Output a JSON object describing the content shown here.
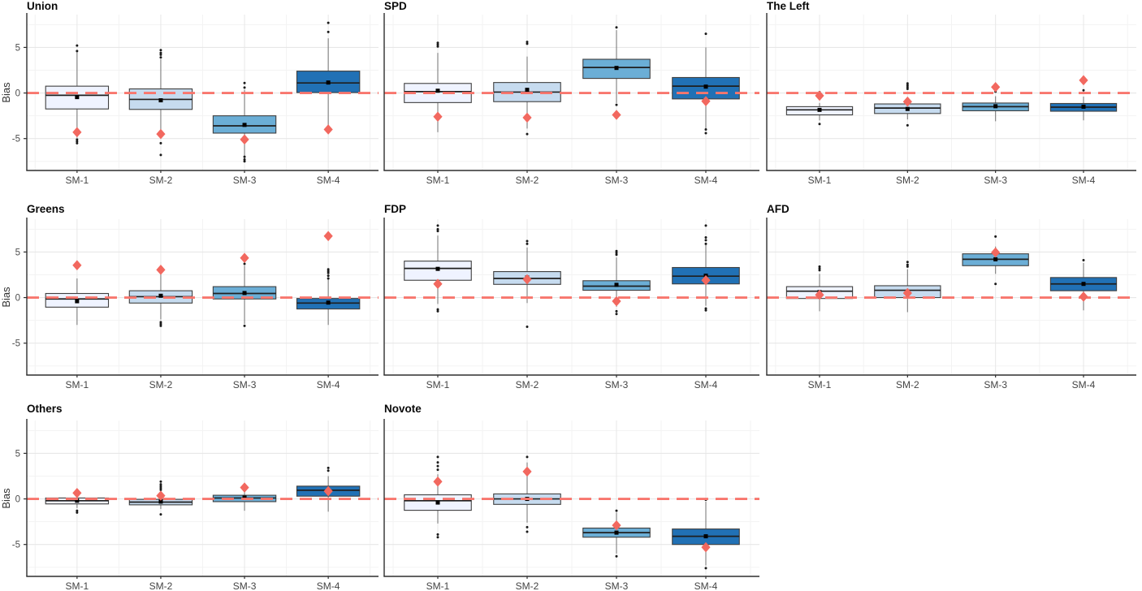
{
  "figure": {
    "ylabel": "Bias",
    "categories": [
      "SM-1",
      "SM-2",
      "SM-3",
      "SM-4"
    ],
    "y_ticks": [
      5,
      0,
      -5
    ],
    "y_tick_labels": [
      "5",
      "0",
      "-5"
    ],
    "y_minor_ticks": [
      7.5,
      2.5,
      -2.5,
      -7.5
    ],
    "ylim": [
      -8.5,
      8.6
    ],
    "reference_line_y": 0,
    "colors": {
      "box_fills": [
        "#EFF3FF",
        "#C6DBEF",
        "#6BAED6",
        "#2171B5"
      ],
      "box_stroke": "#3f3f3f",
      "whisker": "#7d7d7d",
      "median": "#1f1f1f",
      "mean_marker": "#000000",
      "outlier": "#1a1a1a",
      "reference_line": "#F8766D",
      "diamond": "#F2685F",
      "grid_major": "#E7E7E7",
      "grid_minor": "#F3F3F3",
      "axis": "#2f2f2f",
      "tick_text": "#4d4d4d"
    }
  },
  "chart_data": [
    {
      "title": "Union",
      "type": "boxplot",
      "boxes": [
        {
          "label": "SM-1",
          "q1": -1.75,
          "median": -0.25,
          "q3": 0.75,
          "mean": -0.45,
          "whisker_low": -4.9,
          "whisker_high": 4.5,
          "outliers": [
            5.2,
            4.6,
            -5.1,
            -5.3,
            -5.5
          ],
          "diamond": -4.3
        },
        {
          "label": "SM-2",
          "q1": -1.8,
          "median": -0.7,
          "q3": 0.45,
          "mean": -0.8,
          "whisker_low": -4.9,
          "whisker_high": 3.7,
          "outliers": [
            4.7,
            4.4,
            4.2,
            3.9,
            -5.5,
            -6.8
          ],
          "diamond": -4.5
        },
        {
          "label": "SM-3",
          "q1": -4.4,
          "median": -3.6,
          "q3": -2.5,
          "mean": -3.5,
          "whisker_low": -7.4,
          "whisker_high": 0.35,
          "outliers": [
            1.1,
            0.6,
            -7.0,
            -7.3,
            -7.5
          ],
          "diamond": -5.1
        },
        {
          "label": "SM-4",
          "q1": 0.05,
          "median": 1.1,
          "q3": 2.4,
          "mean": 1.15,
          "whisker_low": -4.0,
          "whisker_high": 6.0,
          "outliers": [
            7.7,
            6.7
          ],
          "diamond": -4.0
        }
      ]
    },
    {
      "title": "SPD",
      "type": "boxplot",
      "boxes": [
        {
          "label": "SM-1",
          "q1": -1.05,
          "median": 0.15,
          "q3": 1.05,
          "mean": 0.25,
          "whisker_low": -4.3,
          "whisker_high": 4.4,
          "outliers": [
            5.5,
            5.3,
            5.1
          ],
          "diamond": -2.6
        },
        {
          "label": "SM-2",
          "q1": -0.95,
          "median": 0.1,
          "q3": 1.15,
          "mean": 0.35,
          "whisker_low": -3.9,
          "whisker_high": 4.0,
          "outliers": [
            5.6,
            5.4,
            -4.5
          ],
          "diamond": -2.7
        },
        {
          "label": "SM-3",
          "q1": 1.6,
          "median": 2.8,
          "q3": 3.7,
          "mean": 2.75,
          "whisker_low": -1.1,
          "whisker_high": 6.9,
          "outliers": [
            7.2,
            -1.3
          ],
          "diamond": -2.4
        },
        {
          "label": "SM-4",
          "q1": -0.65,
          "median": 0.75,
          "q3": 1.7,
          "mean": 0.7,
          "whisker_low": -3.9,
          "whisker_high": 5.0,
          "outliers": [
            6.5,
            -4.0,
            -4.4
          ],
          "diamond": -0.9
        }
      ]
    },
    {
      "title": "The Left",
      "type": "boxplot",
      "boxes": [
        {
          "label": "SM-1",
          "q1": -2.4,
          "median": -1.85,
          "q3": -1.5,
          "mean": -1.85,
          "whisker_low": -3.0,
          "whisker_high": -1.1,
          "outliers": [
            0.1,
            -3.4
          ],
          "diamond": -0.3
        },
        {
          "label": "SM-2",
          "q1": -2.25,
          "median": -1.65,
          "q3": -1.2,
          "mean": -1.75,
          "whisker_low": -2.9,
          "whisker_high": -0.7,
          "outliers": [
            1.05,
            0.85,
            0.65,
            0.45,
            -3.55
          ],
          "diamond": -0.95
        },
        {
          "label": "SM-3",
          "q1": -1.95,
          "median": -1.5,
          "q3": -1.1,
          "mean": -1.45,
          "whisker_low": -3.1,
          "whisker_high": -0.35,
          "outliers": [
            0.15
          ],
          "diamond": 0.65
        },
        {
          "label": "SM-4",
          "q1": -2.0,
          "median": -1.55,
          "q3": -1.15,
          "mean": -1.5,
          "whisker_low": -3.0,
          "whisker_high": -0.4,
          "outliers": [
            0.3
          ],
          "diamond": 1.4
        }
      ]
    },
    {
      "title": "Greens",
      "type": "boxplot",
      "boxes": [
        {
          "label": "SM-1",
          "q1": -1.05,
          "median": -0.15,
          "q3": 0.45,
          "mean": -0.4,
          "whisker_low": -3.0,
          "whisker_high": 2.1,
          "outliers": [],
          "diamond": 3.55
        },
        {
          "label": "SM-2",
          "q1": -0.6,
          "median": 0.1,
          "q3": 0.75,
          "mean": 0.2,
          "whisker_low": -2.4,
          "whisker_high": 2.9,
          "outliers": [
            -2.7,
            -2.9,
            -3.1
          ],
          "diamond": 3.05
        },
        {
          "label": "SM-3",
          "q1": -0.15,
          "median": 0.45,
          "q3": 1.2,
          "mean": 0.5,
          "whisker_low": -2.9,
          "whisker_high": 3.5,
          "outliers": [
            3.7,
            -3.1
          ],
          "diamond": 4.35
        },
        {
          "label": "SM-4",
          "q1": -1.25,
          "median": -0.6,
          "q3": -0.1,
          "mean": -0.55,
          "whisker_low": -3.0,
          "whisker_high": 2.0,
          "outliers": [
            3.1,
            2.9,
            2.7,
            2.4,
            2.1
          ],
          "diamond": 6.75
        }
      ]
    },
    {
      "title": "FDP",
      "type": "boxplot",
      "boxes": [
        {
          "label": "SM-1",
          "q1": 1.9,
          "median": 3.2,
          "q3": 4.0,
          "mean": 3.15,
          "whisker_low": -0.7,
          "whisker_high": 6.8,
          "outliers": [
            7.9,
            7.5,
            7.3,
            -1.3,
            -1.5
          ],
          "diamond": 1.5
        },
        {
          "label": "SM-2",
          "q1": 1.45,
          "median": 2.1,
          "q3": 2.85,
          "mean": 2.2,
          "whisker_low": -0.6,
          "whisker_high": 5.5,
          "outliers": [
            6.2,
            5.9,
            -3.2
          ],
          "diamond": 2.0
        },
        {
          "label": "SM-3",
          "q1": 0.8,
          "median": 1.25,
          "q3": 1.85,
          "mean": 1.4,
          "whisker_low": -1.0,
          "whisker_high": 4.4,
          "outliers": [
            5.1,
            4.9,
            4.7,
            -1.5,
            -1.8
          ],
          "diamond": -0.4
        },
        {
          "label": "SM-4",
          "q1": 1.5,
          "median": 2.35,
          "q3": 3.3,
          "mean": 2.4,
          "whisker_low": -0.9,
          "whisker_high": 6.0,
          "outliers": [
            7.9,
            6.6,
            6.3,
            5.9,
            -1.2,
            -1.4
          ],
          "diamond": 1.9
        }
      ]
    },
    {
      "title": "AFD",
      "type": "boxplot",
      "boxes": [
        {
          "label": "SM-1",
          "q1": -0.1,
          "median": 0.7,
          "q3": 1.2,
          "mean": 0.6,
          "whisker_low": -1.5,
          "whisker_high": 2.6,
          "outliers": [
            3.4,
            3.2,
            3.0
          ],
          "diamond": 0.3
        },
        {
          "label": "SM-2",
          "q1": 0.0,
          "median": 0.8,
          "q3": 1.3,
          "mean": 0.65,
          "whisker_low": -1.6,
          "whisker_high": 3.1,
          "outliers": [
            3.9,
            3.6,
            3.4
          ],
          "diamond": 0.5
        },
        {
          "label": "SM-3",
          "q1": 3.5,
          "median": 4.2,
          "q3": 4.8,
          "mean": 4.2,
          "whisker_low": 2.6,
          "whisker_high": 5.6,
          "outliers": [
            6.7,
            1.5
          ],
          "diamond": 4.95
        },
        {
          "label": "SM-4",
          "q1": 0.75,
          "median": 1.5,
          "q3": 2.2,
          "mean": 1.5,
          "whisker_low": -1.4,
          "whisker_high": 3.8,
          "outliers": [
            4.1
          ],
          "diamond": 0.1
        }
      ]
    },
    {
      "title": "Others",
      "type": "boxplot",
      "boxes": [
        {
          "label": "SM-1",
          "q1": -0.55,
          "median": -0.2,
          "q3": 0.1,
          "mean": -0.2,
          "whisker_low": -1.0,
          "whisker_high": 0.5,
          "outliers": [
            -1.3,
            -1.5
          ],
          "diamond": 0.65
        },
        {
          "label": "SM-2",
          "q1": -0.65,
          "median": -0.35,
          "q3": -0.05,
          "mean": -0.3,
          "whisker_low": -1.1,
          "whisker_high": 0.5,
          "outliers": [
            1.9,
            1.6,
            1.4,
            1.2,
            1.0,
            -1.7
          ],
          "diamond": 0.35
        },
        {
          "label": "SM-3",
          "q1": -0.3,
          "median": 0.1,
          "q3": 0.4,
          "mean": 0.15,
          "whisker_low": -1.3,
          "whisker_high": 0.9,
          "outliers": [],
          "diamond": 1.25
        },
        {
          "label": "SM-4",
          "q1": 0.3,
          "median": 0.95,
          "q3": 1.4,
          "mean": 0.9,
          "whisker_low": -1.4,
          "whisker_high": 2.5,
          "outliers": [
            3.4,
            3.1
          ],
          "diamond": 0.85
        }
      ]
    },
    {
      "title": "Novote",
      "type": "boxplot",
      "boxes": [
        {
          "label": "SM-1",
          "q1": -1.25,
          "median": -0.2,
          "q3": 0.45,
          "mean": -0.4,
          "whisker_low": -2.7,
          "whisker_high": 2.7,
          "outliers": [
            4.6,
            4.0,
            3.6,
            3.2,
            -3.9,
            -4.2
          ],
          "diamond": 1.9
        },
        {
          "label": "SM-2",
          "q1": -0.6,
          "median": 0.0,
          "q3": 0.55,
          "mean": 0.0,
          "whisker_low": -2.6,
          "whisker_high": 4.0,
          "outliers": [
            4.6,
            -3.1,
            -3.6
          ],
          "diamond": 3.0
        },
        {
          "label": "SM-3",
          "q1": -4.2,
          "median": -3.7,
          "q3": -3.2,
          "mean": -3.7,
          "whisker_low": -6.0,
          "whisker_high": -1.5,
          "outliers": [
            -1.3,
            -6.3
          ],
          "diamond": -2.9
        },
        {
          "label": "SM-4",
          "q1": -5.0,
          "median": -4.1,
          "q3": -3.3,
          "mean": -4.1,
          "whisker_low": -7.3,
          "whisker_high": -0.3,
          "outliers": [
            -0.1,
            -7.6
          ],
          "diamond": -5.3
        }
      ]
    }
  ]
}
